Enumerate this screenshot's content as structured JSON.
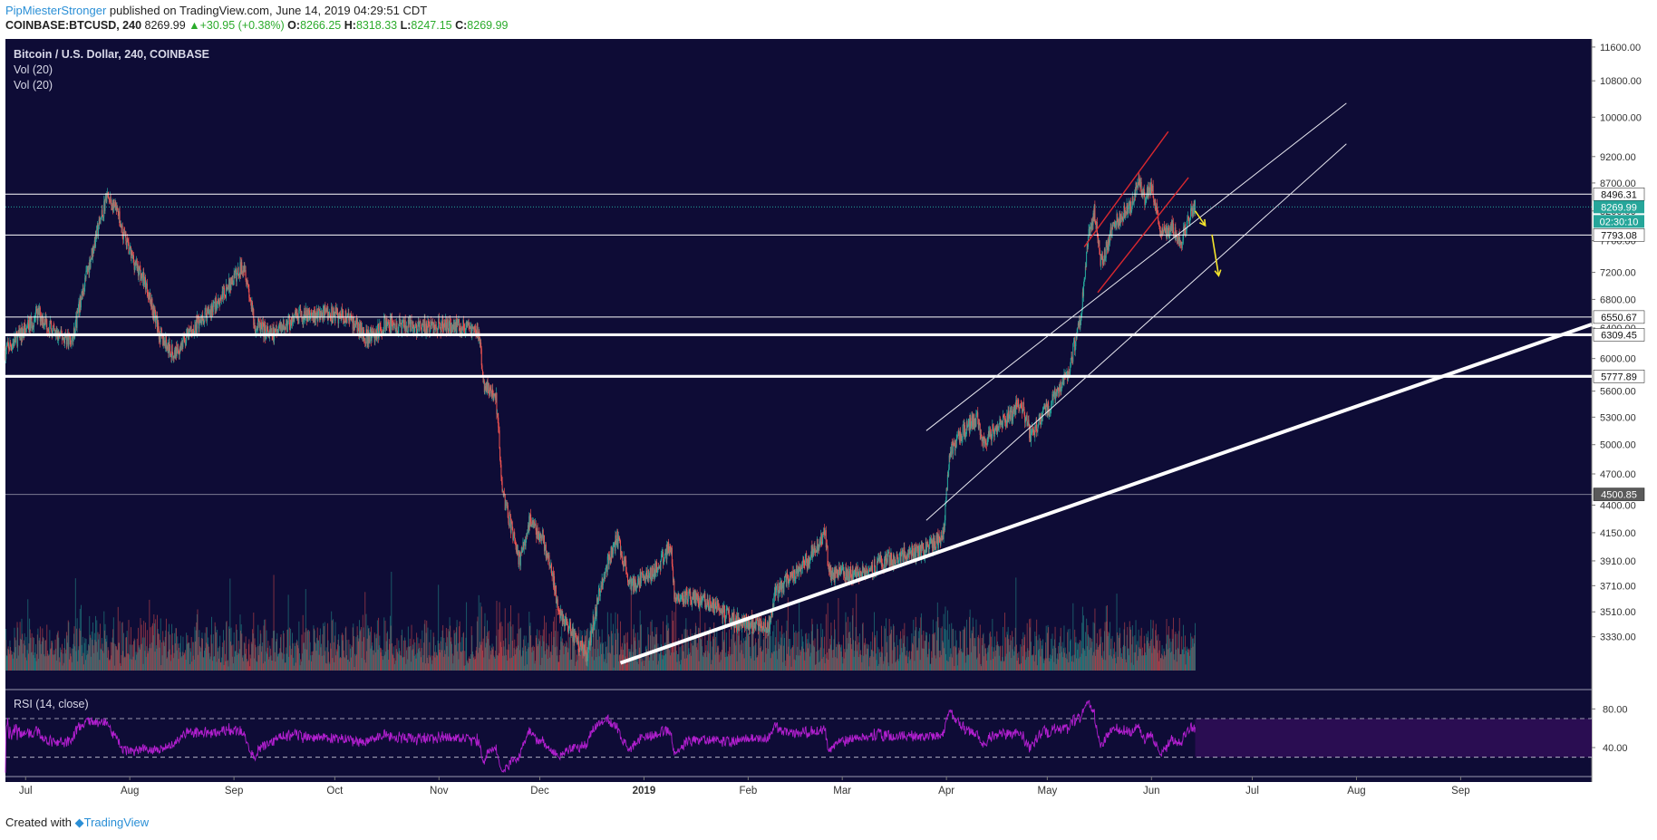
{
  "header": {
    "author": "PipMiesterStronger",
    "published_text": "published on TradingView.com, June 14, 2019 04:29:51 CDT",
    "symbol_line": "COINBASE:BTCUSD, 240",
    "last": "8269.99",
    "change": "+30.95 (+0.38%)",
    "o_label": "O:",
    "o_value": "8266.25",
    "h_label": "H:",
    "h_value": "8318.33",
    "l_label": "L:",
    "l_value": "8247.15",
    "c_label": "C:",
    "c_value": "8269.99"
  },
  "legend": {
    "title": "Bitcoin / U.S. Dollar, 240, COINBASE",
    "vol1": "Vol (20)",
    "vol2": "Vol (20)",
    "rsi": "RSI (14, close)"
  },
  "footer": {
    "created_with": "Created with",
    "brand": "TradingView"
  },
  "colors": {
    "background": "#0e0c36",
    "up": "#26a69a",
    "down": "#ef5350",
    "rsi_line": "#b21fcf",
    "rsi_band": "#2a0d52",
    "price_tag": "#26a69a",
    "level_line": "#ffffff",
    "arrow": "#f6e62b",
    "channel": "#d9282f"
  },
  "chart_data": {
    "type": "candlestick",
    "symbol": "COINBASE:BTCUSD",
    "interval": "240",
    "x_ticks": [
      "Jul",
      "Aug",
      "Sep",
      "Oct",
      "Nov",
      "Dec",
      "2019",
      "Feb",
      "Mar",
      "Apr",
      "May",
      "Jun",
      "Jul",
      "Aug",
      "Sep"
    ],
    "x_range": [
      "2018-06-25",
      "2019-10-10"
    ],
    "price_axis": {
      "scale": "log",
      "ylim": [
        3100,
        11800
      ],
      "ticks": [
        "11600.00",
        "10800.00",
        "10000.00",
        "9200.00",
        "8700.00",
        "8200.00",
        "7700.00",
        "7200.00",
        "6800.00",
        "6400.00",
        "6000.00",
        "5600.00",
        "5300.00",
        "5000.00",
        "4700.00",
        "4400.00",
        "4150.00",
        "3910.00",
        "3710.00",
        "3510.00",
        "3330.00"
      ]
    },
    "price_path": [
      [
        "2018-06-25",
        6100
      ],
      [
        "2018-07-01",
        6380
      ],
      [
        "2018-07-05",
        6600
      ],
      [
        "2018-07-10",
        6300
      ],
      [
        "2018-07-15",
        6250
      ],
      [
        "2018-07-20",
        7350
      ],
      [
        "2018-07-24",
        8200
      ],
      [
        "2018-07-25",
        8450
      ],
      [
        "2018-07-28",
        8200
      ],
      [
        "2018-08-01",
        7500
      ],
      [
        "2018-08-06",
        7000
      ],
      [
        "2018-08-10",
        6300
      ],
      [
        "2018-08-14",
        6050
      ],
      [
        "2018-08-20",
        6400
      ],
      [
        "2018-08-26",
        6700
      ],
      [
        "2018-09-01",
        7100
      ],
      [
        "2018-09-04",
        7350
      ],
      [
        "2018-09-07",
        6450
      ],
      [
        "2018-09-12",
        6300
      ],
      [
        "2018-09-20",
        6550
      ],
      [
        "2018-09-28",
        6600
      ],
      [
        "2018-10-05",
        6550
      ],
      [
        "2018-10-11",
        6250
      ],
      [
        "2018-10-16",
        6450
      ],
      [
        "2018-10-25",
        6400
      ],
      [
        "2018-11-05",
        6450
      ],
      [
        "2018-11-13",
        6350
      ],
      [
        "2018-11-14",
        5700
      ],
      [
        "2018-11-18",
        5500
      ],
      [
        "2018-11-20",
        4500
      ],
      [
        "2018-11-25",
        3900
      ],
      [
        "2018-11-28",
        4250
      ],
      [
        "2018-12-02",
        4100
      ],
      [
        "2018-12-07",
        3500
      ],
      [
        "2018-12-15",
        3200
      ],
      [
        "2018-12-20",
        3800
      ],
      [
        "2018-12-24",
        4100
      ],
      [
        "2018-12-28",
        3700
      ],
      [
        "2019-01-05",
        3850
      ],
      [
        "2019-01-09",
        4050
      ],
      [
        "2019-01-10",
        3650
      ],
      [
        "2019-01-20",
        3580
      ],
      [
        "2019-01-28",
        3450
      ],
      [
        "2019-02-07",
        3400
      ],
      [
        "2019-02-09",
        3650
      ],
      [
        "2019-02-18",
        3900
      ],
      [
        "2019-02-24",
        4150
      ],
      [
        "2019-02-25",
        3800
      ],
      [
        "2019-03-05",
        3800
      ],
      [
        "2019-03-15",
        3920
      ],
      [
        "2019-03-25",
        4000
      ],
      [
        "2019-03-31",
        4100
      ],
      [
        "2019-04-02",
        4900
      ],
      [
        "2019-04-05",
        5100
      ],
      [
        "2019-04-10",
        5300
      ],
      [
        "2019-04-12",
        5050
      ],
      [
        "2019-04-20",
        5300
      ],
      [
        "2019-04-23",
        5500
      ],
      [
        "2019-04-26",
        5100
      ],
      [
        "2019-05-01",
        5400
      ],
      [
        "2019-05-07",
        5800
      ],
      [
        "2019-05-11",
        6500
      ],
      [
        "2019-05-13",
        7700
      ],
      [
        "2019-05-15",
        8200
      ],
      [
        "2019-05-17",
        7300
      ],
      [
        "2019-05-21",
        8000
      ],
      [
        "2019-05-26",
        8300
      ],
      [
        "2019-05-28",
        8700
      ],
      [
        "2019-05-30",
        8400
      ],
      [
        "2019-06-01",
        8650
      ],
      [
        "2019-06-04",
        7800
      ],
      [
        "2019-06-07",
        7900
      ],
      [
        "2019-06-10",
        7700
      ],
      [
        "2019-06-12",
        8050
      ],
      [
        "2019-06-14",
        8269.99
      ]
    ],
    "horizontal_levels": [
      {
        "price": 8496.31,
        "label": "8496.31",
        "weight": "thin"
      },
      {
        "price": 7793.08,
        "label": "7793.08",
        "weight": "thin"
      },
      {
        "price": 6550.67,
        "label": "6550.67",
        "weight": "thin"
      },
      {
        "price": 6309.45,
        "label": "6309.45",
        "weight": "thick"
      },
      {
        "price": 5777.89,
        "label": "5777.89",
        "weight": "thick"
      },
      {
        "price": 4500.85,
        "label": "4500.85",
        "weight": "faint"
      }
    ],
    "last_price": {
      "value": "8269.99",
      "countdown": "02:30:10"
    },
    "trendlines": [
      {
        "from": [
          "2018-12-25",
          3150
        ],
        "to": [
          "2019-10-10",
          6450
        ],
        "style": "thick-white"
      },
      {
        "from": [
          "2019-03-26",
          5150
        ],
        "to": [
          "2019-07-29",
          10300
        ],
        "style": "thin-white"
      },
      {
        "from": [
          "2019-03-26",
          4260
        ],
        "to": [
          "2019-07-29",
          9450
        ],
        "style": "thin-white"
      },
      {
        "from": [
          "2019-05-12",
          7600
        ],
        "to": [
          "2019-06-06",
          9700
        ],
        "style": "red"
      },
      {
        "from": [
          "2019-05-16",
          6900
        ],
        "to": [
          "2019-06-12",
          8800
        ],
        "style": "red"
      }
    ],
    "arrows": [
      {
        "from": [
          "2019-06-14",
          8200
        ],
        "to": [
          "2019-06-17",
          7950
        ]
      },
      {
        "from": [
          "2019-06-19",
          7800
        ],
        "to": [
          "2019-06-21",
          7150
        ]
      }
    ],
    "rsi": {
      "ticks": [
        "80.00",
        "40.00"
      ],
      "upper": 70,
      "lower": 30
    }
  }
}
